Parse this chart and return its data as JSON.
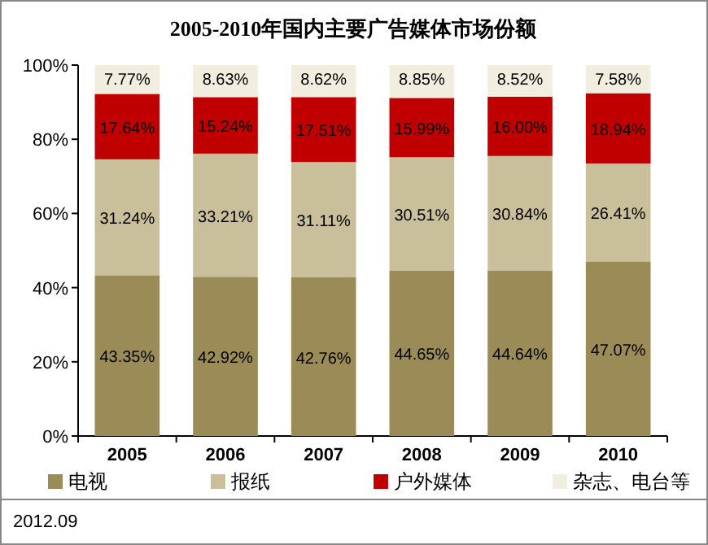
{
  "chart_data": {
    "type": "bar",
    "stacked": true,
    "title": "2005-2010年国内主要广告媒体市场份额",
    "categories": [
      "2005",
      "2006",
      "2007",
      "2008",
      "2009",
      "2010"
    ],
    "series": [
      {
        "name": "电视",
        "color": "#9b8b57",
        "values": [
          43.35,
          42.92,
          42.76,
          44.65,
          44.64,
          47.07
        ],
        "value_labels": [
          "43.35%",
          "42.92%",
          "42.76%",
          "44.65%",
          "44.64%",
          "47.07%"
        ]
      },
      {
        "name": "报纸",
        "color": "#c9c09b",
        "values": [
          31.24,
          33.21,
          31.11,
          30.51,
          30.84,
          26.41
        ],
        "value_labels": [
          "31.24%",
          "33.21%",
          "31.11%",
          "30.51%",
          "30.84%",
          "26.41%"
        ]
      },
      {
        "name": "户外媒体",
        "color": "#c00000",
        "values": [
          17.64,
          15.24,
          17.51,
          15.99,
          16.0,
          18.94
        ],
        "value_labels": [
          "17.64%",
          "15.24%",
          "17.51%",
          "15.99%",
          "16.00%",
          "18.94%"
        ]
      },
      {
        "name": "杂志、电台等",
        "color": "#f2eedf",
        "values": [
          7.77,
          8.63,
          8.62,
          8.85,
          8.52,
          7.58
        ],
        "value_labels": [
          "7.77%",
          "8.63%",
          "8.62%",
          "8.85%",
          "8.52%",
          "7.58%"
        ]
      }
    ],
    "ylim": [
      0,
      100
    ],
    "yticks": [
      {
        "value": 0,
        "label": "0%"
      },
      {
        "value": 20,
        "label": "20%"
      },
      {
        "value": 40,
        "label": "40%"
      },
      {
        "value": 60,
        "label": "60%"
      },
      {
        "value": 80,
        "label": "80%"
      },
      {
        "value": 100,
        "label": "100%"
      }
    ],
    "legend": "bottom",
    "grid": false,
    "annotations": [
      "2012.09"
    ]
  }
}
